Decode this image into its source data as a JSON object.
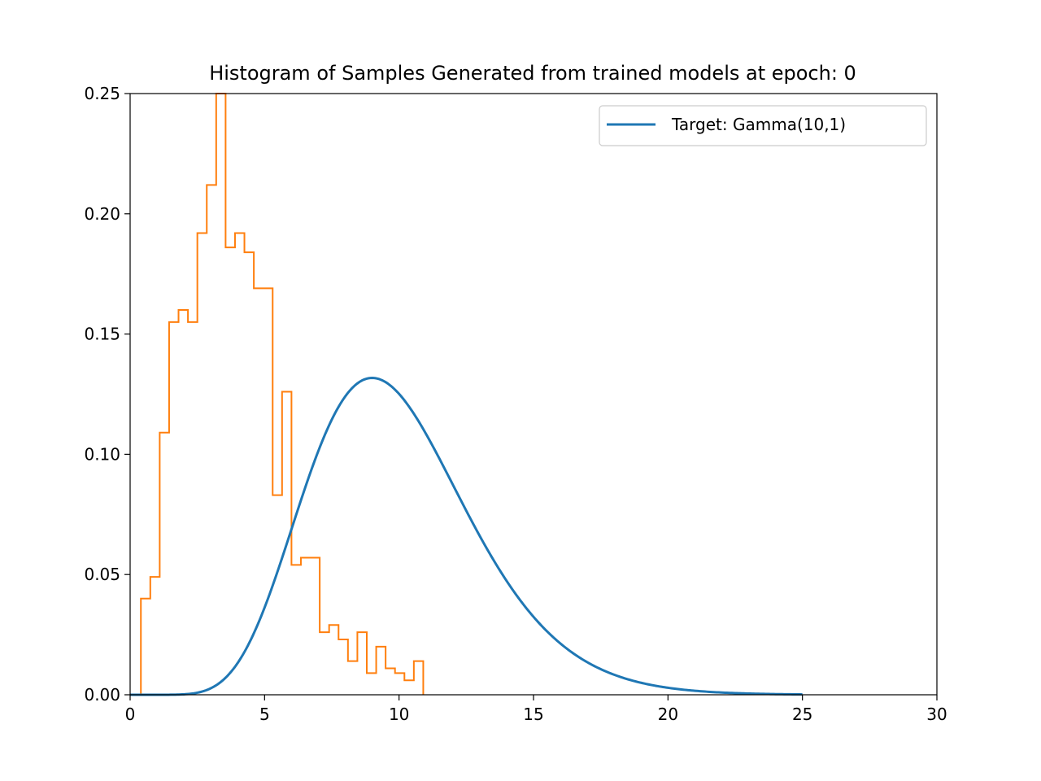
{
  "chart_data": {
    "type": "line",
    "title": "Histogram of Samples Generated from trained models at epoch: 0",
    "xlabel": "",
    "ylabel": "",
    "xlim": [
      0,
      30
    ],
    "ylim": [
      0,
      0.25
    ],
    "xticks": [
      0,
      5,
      10,
      15,
      20,
      25,
      30
    ],
    "yticks": [
      0.0,
      0.05,
      0.1,
      0.15,
      0.2,
      0.25
    ],
    "xtick_labels": [
      "0",
      "5",
      "10",
      "15",
      "20",
      "25",
      "30"
    ],
    "ytick_labels": [
      "0.00",
      "0.05",
      "0.10",
      "0.15",
      "0.20",
      "0.25"
    ],
    "grid": false,
    "legend": {
      "position": "top-right",
      "entries": [
        "Target: Gamma(10,1)"
      ]
    },
    "series": [
      {
        "name": "Target: Gamma(10,1)",
        "kind": "line",
        "color": "#1f77b4",
        "distribution": {
          "family": "gamma",
          "shape": 10,
          "scale": 1,
          "x_range": [
            0,
            25
          ]
        }
      },
      {
        "kind": "step-histogram",
        "color": "#ff7f0e",
        "bin_edges": [
          0.4,
          0.75,
          1.1,
          1.45,
          1.8,
          2.15,
          2.5,
          2.85,
          3.2,
          3.55,
          3.9,
          4.25,
          4.6,
          4.95,
          5.3,
          5.65,
          6.0,
          6.35,
          6.7,
          7.05,
          7.4,
          7.75,
          8.1,
          8.45,
          8.8,
          9.15,
          9.5,
          9.85,
          10.2,
          10.55,
          10.9
        ],
        "values": [
          0.04,
          0.049,
          0.109,
          0.155,
          0.16,
          0.155,
          0.192,
          0.212,
          0.25,
          0.186,
          0.192,
          0.184,
          0.169,
          0.169,
          0.083,
          0.126,
          0.054,
          0.057,
          0.057,
          0.026,
          0.029,
          0.023,
          0.014,
          0.026,
          0.009,
          0.02,
          0.011,
          0.009,
          0.006,
          0.014
        ]
      }
    ]
  }
}
